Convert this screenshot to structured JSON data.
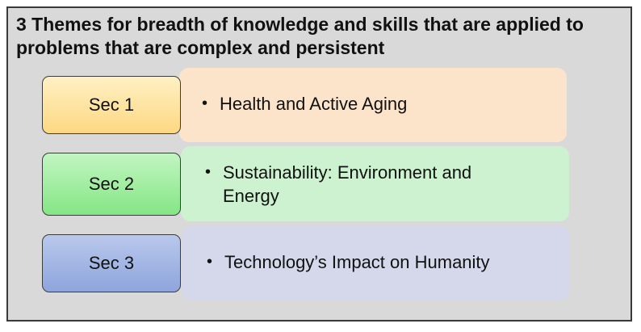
{
  "title": "3 Themes for breadth of knowledge and skills that are applied to problems that are complex and persistent",
  "bullet_glyph": "•",
  "sections": [
    {
      "label": "Sec 1",
      "theme": "Health and Active Aging",
      "box_color": "#fdd882",
      "box_color_light": "#fff0c4",
      "panel_color": "#fce4cb"
    },
    {
      "label": "Sec 2",
      "theme": "Sustainability: Environment and Energy",
      "box_color": "#84e684",
      "box_color_light": "#c2f5c2",
      "panel_color": "#cdf2cf"
    },
    {
      "label": "Sec 3",
      "theme": "Technology’s Impact on Humanity",
      "box_color": "#8ea5dc",
      "box_color_light": "#b9c8ec",
      "panel_color": "#d4d8ea"
    }
  ]
}
